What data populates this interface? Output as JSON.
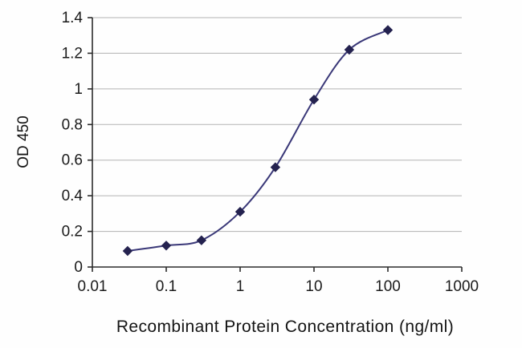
{
  "chart_data": {
    "type": "line",
    "title": "",
    "xlabel": "Recombinant Protein Concentration (ng/ml)",
    "ylabel": "OD 450",
    "x_scale": "log",
    "x": [
      0.03,
      0.1,
      0.3,
      1,
      3,
      10,
      30,
      100
    ],
    "y": [
      0.09,
      0.12,
      0.15,
      0.31,
      0.56,
      0.94,
      1.22,
      1.33
    ],
    "xlim": [
      0.01,
      1000
    ],
    "ylim": [
      0,
      1.4
    ],
    "x_tick_values": [
      0.01,
      0.1,
      1,
      10,
      100,
      1000
    ],
    "x_tick_labels": [
      "0.01",
      "0.1",
      "1",
      "10",
      "100",
      "1000"
    ],
    "y_tick_values": [
      0,
      0.2,
      0.4,
      0.6,
      0.8,
      1,
      1.2,
      1.4
    ],
    "y_tick_labels": [
      "0",
      "0.2",
      "0.4",
      "0.6",
      "0.8",
      "1",
      "1.2",
      "1.4"
    ],
    "grid": "horizontal",
    "legend": "none",
    "marker": "diamond",
    "colors": {
      "line": "#3a3878",
      "marker": "#24224f",
      "grid": "#b3b3b3",
      "axis": "#2b2b2b",
      "tick_text": "#1a1a1a",
      "background": "#fefefe"
    }
  }
}
